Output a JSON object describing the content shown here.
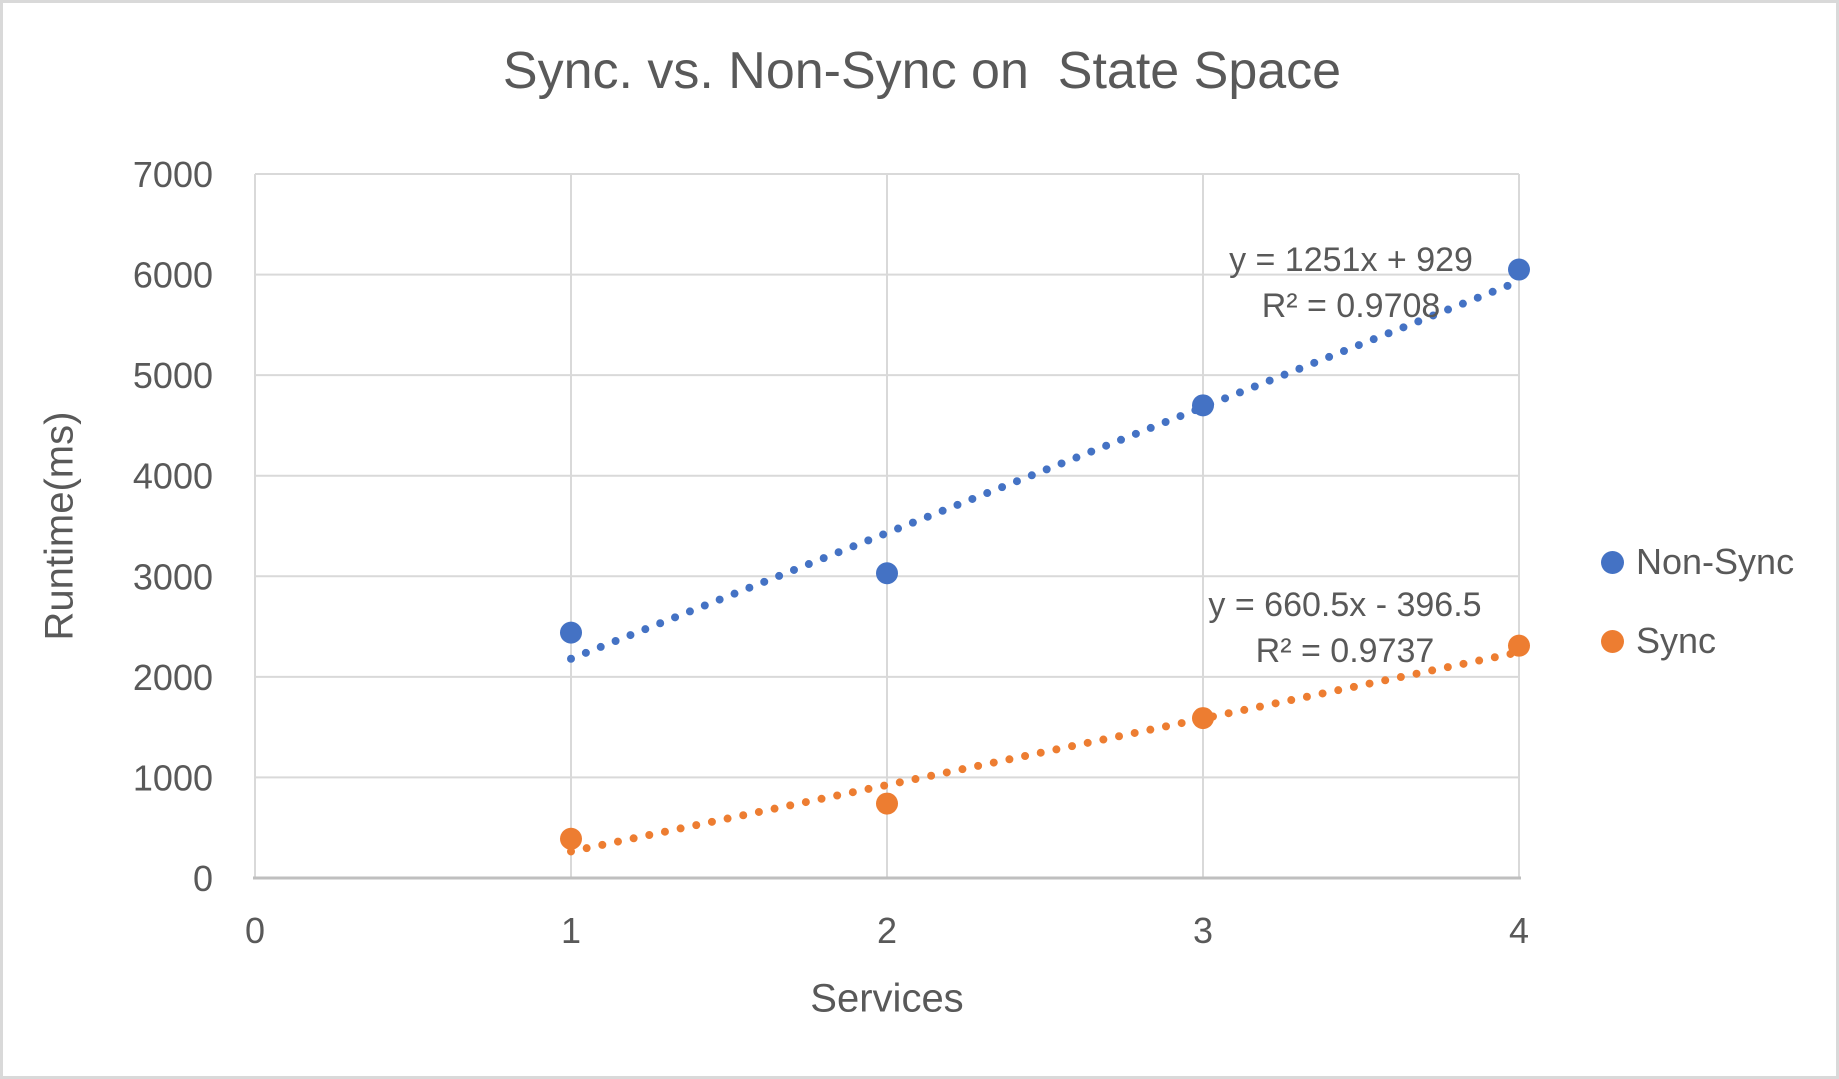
{
  "colors": {
    "text": "#595959",
    "grid": "#D9D9D9",
    "axis_line": "#BFBFBF",
    "frame_border": "#D9D9D9",
    "background": "#FFFFFF"
  },
  "chart_data": {
    "type": "scatter",
    "title": "Sync. vs. Non-Sync on  State Space",
    "xlabel": "Services",
    "ylabel": "Runtime(ms)",
    "xlim": [
      0,
      4
    ],
    "ylim": [
      0,
      7000
    ],
    "x_ticks": [
      0,
      1,
      2,
      3,
      4
    ],
    "y_ticks": [
      0,
      1000,
      2000,
      3000,
      4000,
      5000,
      6000,
      7000
    ],
    "grid": true,
    "legend_position": "right",
    "series": [
      {
        "name": "Non-Sync",
        "color": "#4472C4",
        "x": [
          1,
          2,
          3,
          4
        ],
        "values": [
          2440,
          3030,
          4700,
          6050
        ],
        "trendline": {
          "style": "dotted",
          "slope": 1251,
          "intercept": 929,
          "x_range": [
            1,
            4
          ],
          "equation": "y = 1251x + 929",
          "r2": "R² = 0.9708"
        }
      },
      {
        "name": "Sync",
        "color": "#ED7D31",
        "x": [
          1,
          2,
          3,
          4
        ],
        "values": [
          390,
          740,
          1590,
          2310
        ],
        "trendline": {
          "style": "dotted",
          "slope": 660.5,
          "intercept": -396.5,
          "x_range": [
            1,
            4
          ],
          "equation": "y = 660.5x - 396.5",
          "r2": "R² = 0.9737"
        }
      }
    ]
  }
}
